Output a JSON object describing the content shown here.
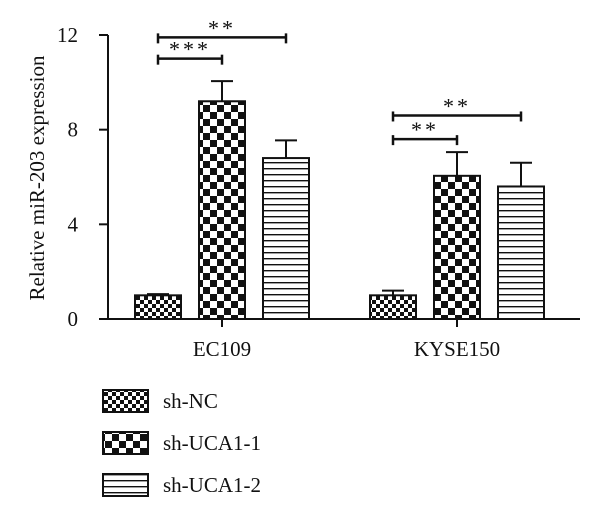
{
  "chart_data": {
    "type": "bar",
    "title": "",
    "xlabel": "",
    "ylabel": "Relative miR-203 expression",
    "ylim": [
      0,
      12
    ],
    "yticks": [
      0,
      4,
      8,
      12
    ],
    "grid": false,
    "legend_position": "bottom-left",
    "categories": [
      "EC109",
      "KYSE150"
    ],
    "series": [
      {
        "name": "sh-NC",
        "pattern": "small-checker",
        "values": [
          1.0,
          1.0
        ],
        "errors": [
          0.05,
          0.2
        ]
      },
      {
        "name": "sh-UCA1-1",
        "pattern": "large-checker",
        "values": [
          9.2,
          6.05
        ],
        "errors": [
          0.85,
          1.0
        ]
      },
      {
        "name": "sh-UCA1-2",
        "pattern": "horizontal-stripes",
        "values": [
          6.8,
          5.6
        ],
        "errors": [
          0.75,
          1.0
        ]
      }
    ],
    "annotations": [
      {
        "category": "EC109",
        "from": "sh-NC",
        "to": "sh-UCA1-1",
        "y": 11.0,
        "label": "***"
      },
      {
        "category": "EC109",
        "from": "sh-NC",
        "to": "sh-UCA1-2",
        "y": 11.9,
        "label": "**"
      },
      {
        "category": "KYSE150",
        "from": "sh-NC",
        "to": "sh-UCA1-1",
        "y": 7.6,
        "label": "**"
      },
      {
        "category": "KYSE150",
        "from": "sh-NC",
        "to": "sh-UCA1-2",
        "y": 8.6,
        "label": "**"
      }
    ],
    "colors": {
      "ink": "#111111",
      "background": "#ffffff"
    }
  }
}
